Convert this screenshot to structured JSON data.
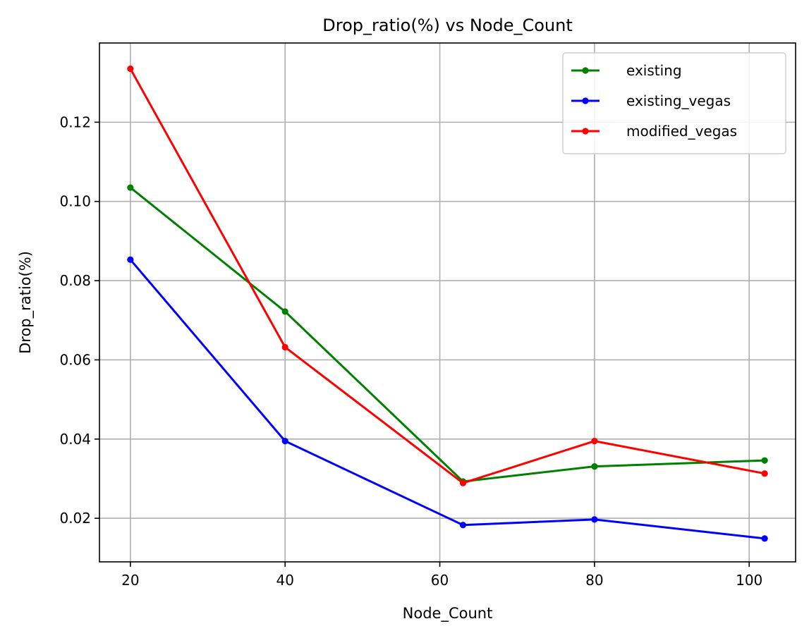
{
  "chart_data": {
    "type": "line",
    "title": "Drop_ratio(%) vs Node_Count",
    "xlabel": "Node_Count",
    "ylabel": "Drop_ratio(%)",
    "x": [
      20,
      40,
      63,
      80,
      102
    ],
    "xlim": [
      16,
      106
    ],
    "ylim": [
      0.009,
      0.14
    ],
    "xticks": [
      20,
      40,
      60,
      80,
      100
    ],
    "xtick_labels": [
      "20",
      "40",
      "60",
      "80",
      "100"
    ],
    "yticks": [
      0.02,
      0.04,
      0.06,
      0.08,
      0.1,
      0.12
    ],
    "ytick_labels": [
      "0.02",
      "0.04",
      "0.06",
      "0.08",
      "0.10",
      "0.12"
    ],
    "grid": true,
    "legend_position": "top-right",
    "series": [
      {
        "name": "existing",
        "color": "#008000",
        "values": [
          0.1035,
          0.0722,
          0.0293,
          0.0331,
          0.0346
        ]
      },
      {
        "name": "existing_vegas",
        "color": "#0000ff",
        "values": [
          0.0853,
          0.0395,
          0.0183,
          0.0197,
          0.0149
        ]
      },
      {
        "name": "modified_vegas",
        "color": "#ff0000",
        "values": [
          0.1335,
          0.0632,
          0.0289,
          0.0395,
          0.0313
        ]
      }
    ]
  }
}
